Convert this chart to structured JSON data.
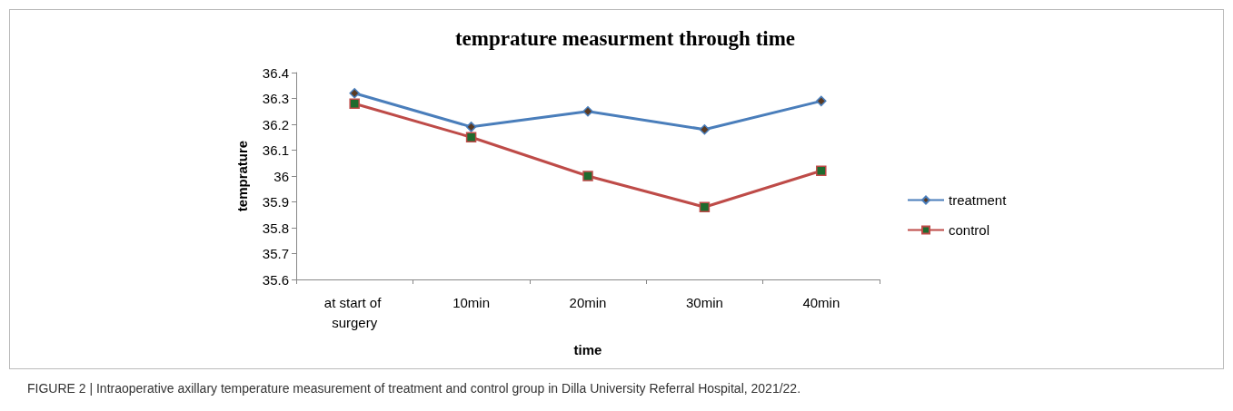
{
  "chart_data": {
    "type": "line",
    "title": "temprature measurment through time",
    "xlabel": "time",
    "ylabel": "temprature",
    "categories": [
      "at start of surgery",
      "10min",
      "20min",
      "30min",
      "40min"
    ],
    "series": [
      {
        "name": "treatment",
        "color": "#4a7ebb",
        "marker": "diamond",
        "values": [
          36.32,
          36.19,
          36.25,
          36.18,
          36.29
        ]
      },
      {
        "name": "control",
        "color": "#be4b48",
        "marker": "square",
        "values": [
          36.28,
          36.15,
          36.0,
          35.88,
          36.02
        ]
      }
    ],
    "ylim": [
      35.6,
      36.4
    ],
    "yticks": [
      35.6,
      35.7,
      35.8,
      35.9,
      36,
      36.1,
      36.2,
      36.3,
      36.4
    ],
    "grid": false,
    "legend": "right",
    "annotations": [
      "FIGURE 2 | Intraoperative axillary temperature measurement of treatment and control group in Dilla University Referral Hospital, 2021/22."
    ]
  }
}
